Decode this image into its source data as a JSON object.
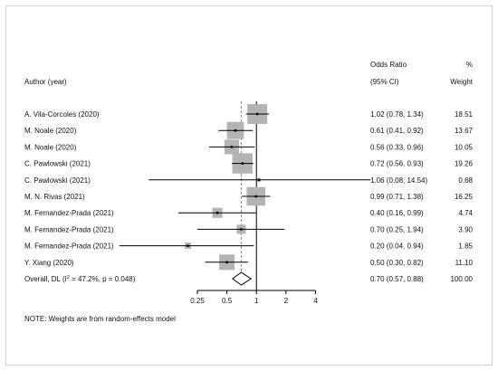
{
  "chart_data": {
    "type": "forest",
    "headers": {
      "author": "Author (year)",
      "or_line1": "Odds Ratio",
      "or_line2": "(95% CI)",
      "weight_line1": "%",
      "weight_line2": "Weight"
    },
    "x_scale": "log",
    "xlim": [
      0.16,
      4.6
    ],
    "null_value": 1,
    "x_ticks": [
      {
        "value": 0.25,
        "label": "0.25"
      },
      {
        "value": 0.5,
        "label": "0.5"
      },
      {
        "value": 1,
        "label": "1"
      },
      {
        "value": 2,
        "label": "2"
      },
      {
        "value": 4,
        "label": "4"
      }
    ],
    "studies": [
      {
        "author": "A. Vila-Corcoles (2020)",
        "or": 1.02,
        "lo": 0.78,
        "hi": 1.34,
        "ci_text": "1.02 (0.78, 1.34)",
        "weight": 18.51,
        "weight_text": "18.51"
      },
      {
        "author": "M. Noale (2020)",
        "or": 0.61,
        "lo": 0.41,
        "hi": 0.92,
        "ci_text": "0.61 (0.41, 0.92)",
        "weight": 13.67,
        "weight_text": "13.67"
      },
      {
        "author": "M. Noale (2020)",
        "or": 0.56,
        "lo": 0.33,
        "hi": 0.96,
        "ci_text": "0.56 (0.33, 0.96)",
        "weight": 10.05,
        "weight_text": "10.05"
      },
      {
        "author": "C. Pawlowski (2021)",
        "or": 0.72,
        "lo": 0.56,
        "hi": 0.93,
        "ci_text": "0.72 (0.56, 0.93)",
        "weight": 19.26,
        "weight_text": "19.26"
      },
      {
        "author": "C. Pawlowski (2021)",
        "or": 1.06,
        "lo": 0.08,
        "hi": 14.54,
        "ci_text": "1.06 (0.08, 14.54)",
        "weight": 0.68,
        "weight_text": "0.68"
      },
      {
        "author": "M. N. Rivas (2021)",
        "or": 0.99,
        "lo": 0.71,
        "hi": 1.38,
        "ci_text": "0.99 (0.71, 1.38)",
        "weight": 16.25,
        "weight_text": "16.25"
      },
      {
        "author": "M. Fernandez-Prada (2021)",
        "or": 0.4,
        "lo": 0.16,
        "hi": 0.99,
        "ci_text": "0.40 (0.16, 0.99)",
        "weight": 4.74,
        "weight_text": "4.74"
      },
      {
        "author": "M. Fernandez-Prada (2021)",
        "or": 0.7,
        "lo": 0.25,
        "hi": 1.94,
        "ci_text": "0.70 (0.25, 1.94)",
        "weight": 3.9,
        "weight_text": "3.90"
      },
      {
        "author": "M. Fernandez-Prada (2021)",
        "or": 0.2,
        "lo": 0.04,
        "hi": 0.94,
        "ci_text": "0.20 (0.04, 0.94)",
        "weight": 1.85,
        "weight_text": "1.85"
      },
      {
        "author": "Y. Xiang (2020)",
        "or": 0.5,
        "lo": 0.3,
        "hi": 0.82,
        "ci_text": "0.50 (0.30, 0.82)",
        "weight": 11.1,
        "weight_text": "11.10"
      }
    ],
    "overall": {
      "label_prefix": "Overall, DL (I",
      "label_sup": "2",
      "label_suffix": " = 47.2%, p = 0.048)",
      "or": 0.7,
      "lo": 0.57,
      "hi": 0.88,
      "ci_text": "0.70 (0.57, 0.88)",
      "weight": 100.0,
      "weight_text": "100.00"
    },
    "note": "NOTE: Weights are from random-effects model",
    "colors": {
      "box": "#b4b4b4",
      "line": "#000000",
      "overall_line": "#888888",
      "text": "#111111"
    }
  }
}
